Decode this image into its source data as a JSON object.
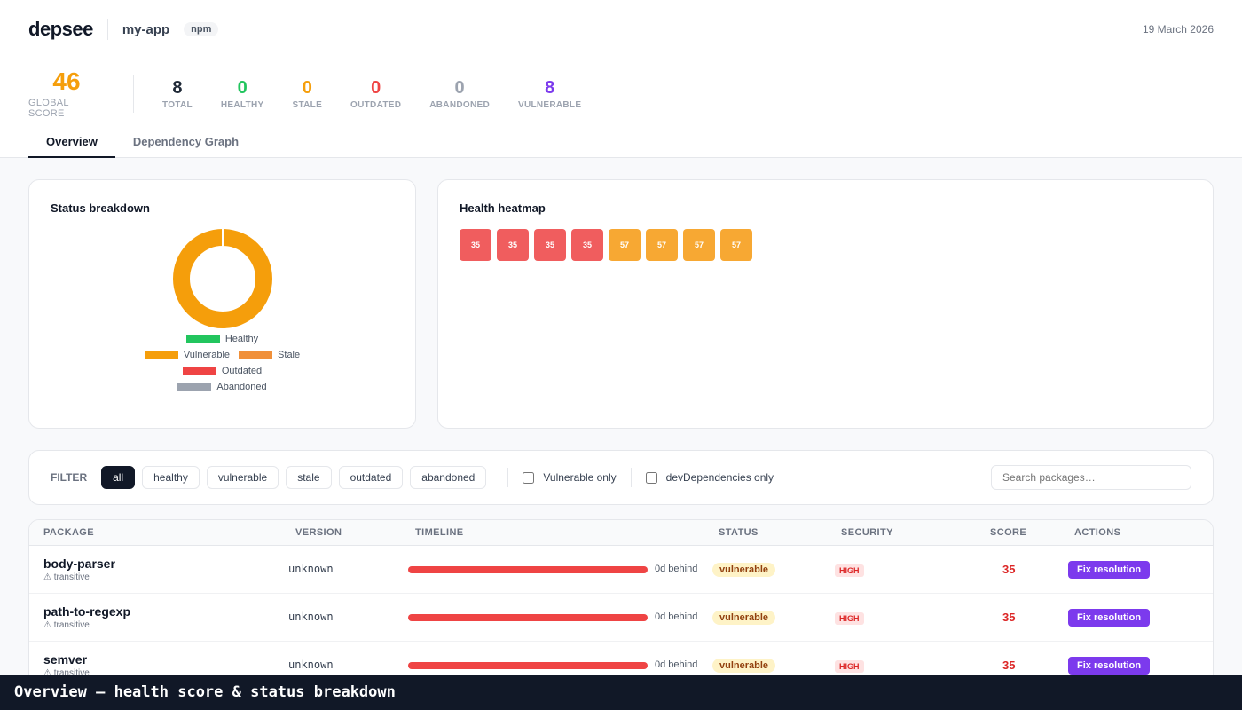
{
  "header": {
    "logo": "depsee",
    "app_name": "my-app",
    "ecosystem_badge": "npm",
    "date": "19 March 2026"
  },
  "global_score": {
    "value": "46",
    "label": "GLOBAL SCORE",
    "color": "#f59e0b"
  },
  "stats": [
    {
      "value": "8",
      "label": "TOTAL",
      "color": "#1f2937"
    },
    {
      "value": "0",
      "label": "HEALTHY",
      "color": "#22c55e"
    },
    {
      "value": "0",
      "label": "STALE",
      "color": "#f59e0b"
    },
    {
      "value": "0",
      "label": "OUTDATED",
      "color": "#ef4444"
    },
    {
      "value": "0",
      "label": "ABANDONED",
      "color": "#9ca3af"
    },
    {
      "value": "8",
      "label": "VULNERABLE",
      "color": "#7c3aed"
    }
  ],
  "tabs": [
    {
      "label": "Overview",
      "active": true
    },
    {
      "label": "Dependency Graph",
      "active": false
    }
  ],
  "status_breakdown": {
    "title": "Status breakdown",
    "chart_data": {
      "type": "pie",
      "donut": true,
      "categories": [
        "Healthy",
        "Vulnerable",
        "Stale",
        "Outdated",
        "Abandoned"
      ],
      "values": [
        0,
        8,
        0,
        0,
        0
      ],
      "colors": [
        "#22c55e",
        "#f59e0b",
        "#f0903a",
        "#ef4444",
        "#9ca3af"
      ],
      "legend_placement": "bottom"
    },
    "legend": [
      {
        "label": "Healthy",
        "color": "#22c55e"
      },
      {
        "label": "Vulnerable",
        "color": "#f59e0b"
      },
      {
        "label": "Stale",
        "color": "#f0903a"
      },
      {
        "label": "Outdated",
        "color": "#ef4444"
      },
      {
        "label": "Abandoned",
        "color": "#9ca3af"
      }
    ]
  },
  "heatmap": {
    "title": "Health heatmap",
    "cells": [
      {
        "score": "35",
        "color": "#f05d5e"
      },
      {
        "score": "35",
        "color": "#f05d5e"
      },
      {
        "score": "35",
        "color": "#f05d5e"
      },
      {
        "score": "35",
        "color": "#f05d5e"
      },
      {
        "score": "57",
        "color": "#f7a833"
      },
      {
        "score": "57",
        "color": "#f7a833"
      },
      {
        "score": "57",
        "color": "#f7a833"
      },
      {
        "score": "57",
        "color": "#f7a833"
      }
    ]
  },
  "filter": {
    "label": "FILTER",
    "chips": [
      {
        "label": "all",
        "active": true
      },
      {
        "label": "healthy",
        "active": false
      },
      {
        "label": "vulnerable",
        "active": false
      },
      {
        "label": "stale",
        "active": false
      },
      {
        "label": "outdated",
        "active": false
      },
      {
        "label": "abandoned",
        "active": false
      }
    ],
    "vulnerable_only_label": "Vulnerable only",
    "dev_only_label": "devDependencies only",
    "search_placeholder": "Search packages…"
  },
  "table": {
    "headers": {
      "package": "PACKAGE",
      "version": "VERSION",
      "timeline": "TIMELINE",
      "status": "STATUS",
      "security": "SECURITY",
      "score": "SCORE",
      "actions": "ACTIONS"
    },
    "rows": [
      {
        "name": "body-parser",
        "note": "⚠ transitive",
        "version": "unknown",
        "behind": "0d behind",
        "status": "vulnerable",
        "security": "HIGH",
        "score": "35",
        "action": "Fix resolution"
      },
      {
        "name": "path-to-regexp",
        "note": "⚠ transitive",
        "version": "unknown",
        "behind": "0d behind",
        "status": "vulnerable",
        "security": "HIGH",
        "score": "35",
        "action": "Fix resolution"
      },
      {
        "name": "semver",
        "note": "⚠ transitive",
        "version": "unknown",
        "behind": "0d behind",
        "status": "vulnerable",
        "security": "HIGH",
        "score": "35",
        "action": "Fix resolution"
      }
    ]
  },
  "caption": "Overview — health score & status breakdown"
}
